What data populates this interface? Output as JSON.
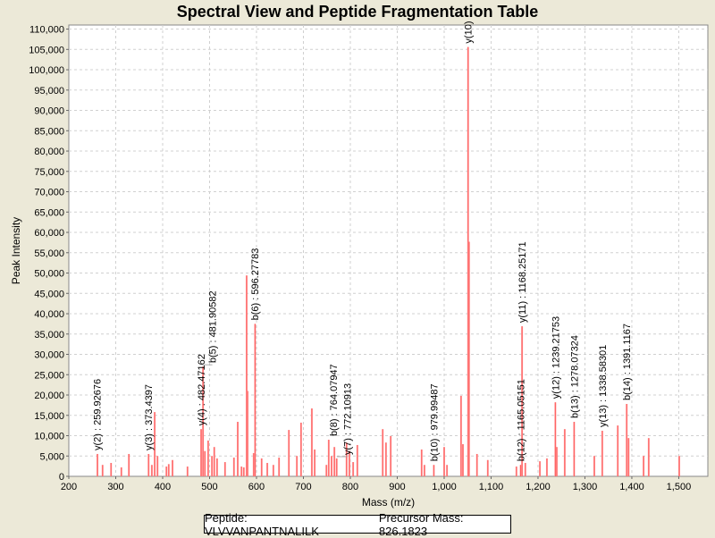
{
  "chart_data": {
    "type": "bar",
    "title": "Spectral View and Peptide Fragmentation Table",
    "xlabel": "Mass (m/z)",
    "ylabel": "Peak Intensity",
    "xlim": [
      200,
      1562
    ],
    "ylim": [
      0,
      111000
    ],
    "xticks": [
      200,
      300,
      400,
      500,
      600,
      700,
      800,
      900,
      1000,
      1100,
      1200,
      1300,
      1400,
      1500
    ],
    "xtick_labels": [
      "200",
      "300",
      "400",
      "500",
      "600",
      "700",
      "800",
      "900",
      "1,000",
      "1,100",
      "1,200",
      "1,300",
      "1,400",
      "1,500"
    ],
    "yticks": [
      0,
      5000,
      10000,
      15000,
      20000,
      25000,
      30000,
      35000,
      40000,
      45000,
      50000,
      55000,
      60000,
      65000,
      70000,
      75000,
      80000,
      85000,
      90000,
      95000,
      100000,
      105000,
      110000
    ],
    "ytick_labels": [
      "0",
      "5,000",
      "10,000",
      "15,000",
      "20,000",
      "25,000",
      "30,000",
      "35,000",
      "40,000",
      "45,000",
      "50,000",
      "55,000",
      "60,000",
      "65,000",
      "70,000",
      "75,000",
      "80,000",
      "85,000",
      "90,000",
      "95,000",
      "100,000",
      "105,000",
      "110,000"
    ],
    "grid": true,
    "color": "#ff5c5c",
    "peaks": [
      [
        261,
        5500
      ],
      [
        272,
        2800
      ],
      [
        290,
        3300
      ],
      [
        312,
        2200
      ],
      [
        328,
        5500
      ],
      [
        370,
        5500
      ],
      [
        377,
        2800
      ],
      [
        383,
        15800
      ],
      [
        389,
        5000
      ],
      [
        408,
        2400
      ],
      [
        413,
        3000
      ],
      [
        421,
        4000
      ],
      [
        453,
        2400
      ],
      [
        482,
        11600
      ],
      [
        486,
        27000
      ],
      [
        490,
        6200
      ],
      [
        497,
        8800
      ],
      [
        505,
        5000
      ],
      [
        510,
        7200
      ],
      [
        516,
        4400
      ],
      [
        533,
        3500
      ],
      [
        552,
        4600
      ],
      [
        560,
        13400
      ],
      [
        568,
        2400
      ],
      [
        573,
        2200
      ],
      [
        579,
        49400
      ],
      [
        581,
        21000
      ],
      [
        594,
        5700
      ],
      [
        597,
        37500
      ],
      [
        611,
        4400
      ],
      [
        623,
        3300
      ],
      [
        636,
        2800
      ],
      [
        648,
        4600
      ],
      [
        669,
        11400
      ],
      [
        686,
        5000
      ],
      [
        695,
        13200
      ],
      [
        718,
        16700
      ],
      [
        724,
        6600
      ],
      [
        749,
        2800
      ],
      [
        754,
        9000
      ],
      [
        760,
        5000
      ],
      [
        766,
        7200
      ],
      [
        771,
        4400
      ],
      [
        792,
        8300
      ],
      [
        798,
        6200
      ],
      [
        806,
        3500
      ],
      [
        815,
        7700
      ],
      [
        869,
        11600
      ],
      [
        876,
        8300
      ],
      [
        886,
        9900
      ],
      [
        952,
        6600
      ],
      [
        958,
        2800
      ],
      [
        978,
        2800
      ],
      [
        1000,
        7200
      ],
      [
        1006,
        2800
      ],
      [
        1036,
        19800
      ],
      [
        1040,
        7900
      ],
      [
        1051,
        105600
      ],
      [
        1053,
        57700
      ],
      [
        1070,
        5500
      ],
      [
        1093,
        4000
      ],
      [
        1154,
        2400
      ],
      [
        1163,
        2800
      ],
      [
        1166,
        36900
      ],
      [
        1173,
        3300
      ],
      [
        1204,
        3700
      ],
      [
        1219,
        4400
      ],
      [
        1237,
        18200
      ],
      [
        1240,
        7200
      ],
      [
        1257,
        11600
      ],
      [
        1277,
        13400
      ],
      [
        1320,
        5000
      ],
      [
        1337,
        11200
      ],
      [
        1370,
        12500
      ],
      [
        1389,
        17800
      ],
      [
        1393,
        9400
      ],
      [
        1425,
        5000
      ],
      [
        1436,
        9400
      ],
      [
        1501,
        5000
      ]
    ],
    "annotations": [
      {
        "text": "y(2) : 259.92676",
        "x": 260,
        "y": 5500
      },
      {
        "text": "y(3) : 373.4397",
        "x": 370,
        "y": 5500
      },
      {
        "text": "y(4) : 482.47162",
        "x": 482,
        "y": 11600
      },
      {
        "text": "b(5) : 481.90582",
        "x": 483,
        "y": 27000
      },
      {
        "text": "b(6) : 596.27783",
        "x": 596,
        "y": 37500
      },
      {
        "text": "b(8) : 764.07947",
        "x": 764,
        "y": 9000
      },
      {
        "text": "y(7) : 772.10913",
        "x": 771,
        "y": 4400
      },
      {
        "text": "b(10) : 979.99487",
        "x": 978,
        "y": 2800
      },
      {
        "text": "y(10)",
        "x": 1051,
        "y": 105600
      },
      {
        "text": "b(12) : 1165.05151",
        "x": 1163,
        "y": 2800
      },
      {
        "text": "y(11) : 1168.25171",
        "x": 1166,
        "y": 36900
      },
      {
        "text": "y(12) : 1239.21753",
        "x": 1237,
        "y": 18200
      },
      {
        "text": "b(13) : 1278.07324",
        "x": 1277,
        "y": 13400
      },
      {
        "text": "y(13) : 1338.58301",
        "x": 1337,
        "y": 11200
      },
      {
        "text": "b(14) : 1391.1167",
        "x": 1389,
        "y": 17800
      }
    ],
    "legend": {
      "peptide": "Peptide: VLVVANPANTNALILK",
      "precursor": "Precursor Mass: 826.1823",
      "position": "bottom"
    }
  }
}
